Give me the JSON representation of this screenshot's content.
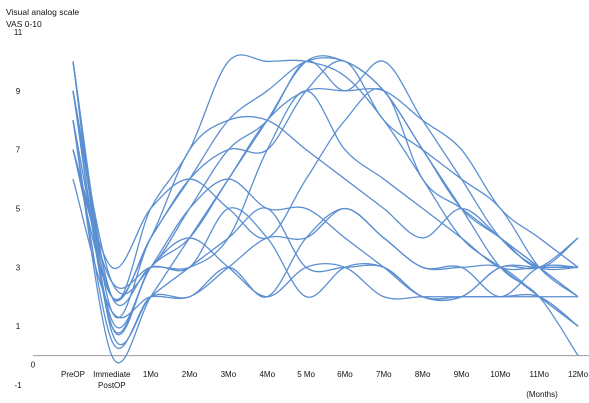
{
  "chart_data": {
    "type": "line",
    "title": "Visual analog scale",
    "subtitle": "VAS 0-10",
    "xlabel": "(Months)",
    "ylabel": "",
    "origin_label": "0",
    "categories": [
      "PreOP",
      "Immediate PostOP",
      "1Mo",
      "2Mo",
      "3Mo",
      "4Mo",
      "5 Mo",
      "6Mo",
      "7Mo",
      "8Mo",
      "9Mo",
      "10Mo",
      "11Mo",
      "12Mo"
    ],
    "category_lines": [
      [
        "PreOP"
      ],
      [
        "Immediate",
        "PostOP"
      ],
      [
        "1Mo"
      ],
      [
        "2Mo"
      ],
      [
        "3Mo"
      ],
      [
        "4Mo"
      ],
      [
        "5 Mo"
      ],
      [
        "6Mo"
      ],
      [
        "7Mo"
      ],
      [
        "8Mo"
      ],
      [
        "9Mo"
      ],
      [
        "10Mo"
      ],
      [
        "11Mo"
      ],
      [
        "12Mo"
      ]
    ],
    "ylim": [
      -1,
      11
    ],
    "yticks": [
      -1,
      1,
      3,
      5,
      7,
      9,
      11
    ],
    "grid": false,
    "legend": "none",
    "line_color": "#5b8fd1",
    "series": [
      {
        "values": [
          10,
          2,
          5,
          7,
          10,
          10,
          10,
          9.5,
          8,
          6,
          4,
          3,
          2,
          1
        ]
      },
      {
        "values": [
          10,
          1.5,
          4,
          6,
          8,
          9,
          10,
          10,
          9,
          7,
          5,
          4,
          3,
          2
        ]
      },
      {
        "values": [
          9,
          2.5,
          3,
          5,
          7,
          8,
          10,
          9,
          10,
          8,
          6,
          4,
          3,
          3
        ]
      },
      {
        "values": [
          9,
          1,
          3,
          4,
          6,
          8,
          10,
          10,
          9,
          7,
          5,
          3,
          2,
          0
        ]
      },
      {
        "values": [
          8,
          2,
          4,
          6,
          7,
          7,
          9,
          10,
          8,
          7,
          6,
          5,
          3,
          2
        ]
      },
      {
        "values": [
          8,
          0,
          2,
          4,
          6,
          8,
          9,
          9,
          9,
          8,
          7,
          5,
          4,
          3
        ]
      },
      {
        "values": [
          7,
          3,
          5,
          6,
          5,
          4,
          6,
          8,
          9,
          6,
          5,
          4,
          3,
          4
        ]
      },
      {
        "values": [
          7,
          2.5,
          3,
          3,
          4,
          7,
          9,
          7,
          6,
          5,
          4,
          3,
          3,
          3
        ]
      },
      {
        "values": [
          6,
          1.5,
          2,
          2,
          3,
          2,
          4,
          5,
          4,
          3,
          3,
          2,
          3,
          3
        ]
      },
      {
        "values": [
          10,
          0.8,
          2,
          3,
          4,
          5,
          3,
          3,
          3,
          2,
          2,
          3,
          3,
          4
        ]
      },
      {
        "values": [
          9,
          1.2,
          3,
          5,
          6,
          5,
          5,
          4,
          3,
          2,
          2,
          2,
          2,
          1
        ]
      },
      {
        "values": [
          8,
          0.5,
          2,
          2,
          3,
          4,
          4,
          5,
          4,
          3,
          3,
          3,
          2,
          1
        ]
      },
      {
        "values": [
          9,
          2,
          3,
          3,
          5,
          4,
          2,
          3,
          3,
          2,
          2,
          3,
          3,
          3
        ]
      },
      {
        "values": [
          10,
          1,
          3,
          4,
          3,
          2,
          3,
          3,
          2,
          2,
          2,
          2,
          2,
          2
        ]
      },
      {
        "values": [
          7,
          2,
          4,
          7,
          8,
          8,
          7,
          6,
          5,
          4,
          5,
          4,
          3,
          2
        ]
      }
    ]
  }
}
